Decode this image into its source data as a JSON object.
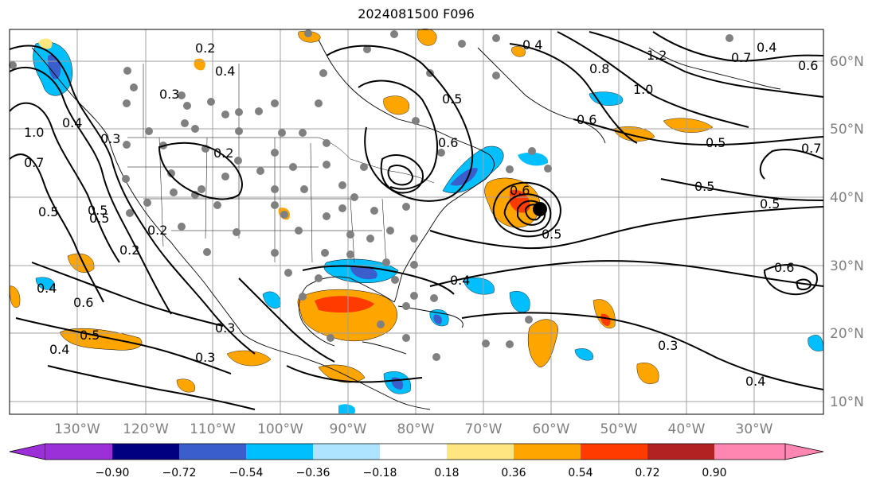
{
  "title": "2024081500 F096",
  "map": {
    "lon_ticks": [
      "130°W",
      "120°W",
      "110°W",
      "100°W",
      "90°W",
      "80°W",
      "70°W",
      "60°W",
      "50°W",
      "40°W",
      "30°W"
    ],
    "lat_ticks": [
      "60°N",
      "50°N",
      "40°N",
      "30°N",
      "20°N",
      "10°N"
    ],
    "contour_labels": [
      "0.2",
      "0.4",
      "0.3",
      "0.2",
      "1.0",
      "0.7",
      "0.5",
      "0.5",
      "0.2",
      "0.4",
      "0.6",
      "0.5",
      "0.4",
      "0.3",
      "0.3",
      "0.5",
      "0.6",
      "0.4",
      "0.5",
      "0.6",
      "0.3",
      "0.4",
      "0.8",
      "1.0",
      "1.2",
      "0.7",
      "0.6",
      "0.4",
      "0.5",
      "0.5",
      "0.7",
      "0.6",
      "0.5",
      "0.6",
      "0.5",
      "0.4",
      "0.3",
      "0.4",
      "0.2"
    ],
    "shading_colors": {
      "strong_positive": "#ff3b00",
      "positive": "#ffa500",
      "weak_positive": "#ffe680",
      "weak_negative": "#aee4ff",
      "negative": "#00bfff",
      "strong_negative": "#3a5fcd"
    }
  },
  "colorbar": {
    "ticks": [
      "−0.90",
      "−0.72",
      "−0.54",
      "−0.36",
      "−0.18",
      "0.18",
      "0.36",
      "0.54",
      "0.72",
      "0.90"
    ],
    "colors": [
      "#9b30d9",
      "#000080",
      "#3a5fcd",
      "#00bfff",
      "#aee4ff",
      "#ffffff",
      "#ffe680",
      "#ffa500",
      "#ff3b00",
      "#b22222",
      "#ff86b0"
    ]
  }
}
